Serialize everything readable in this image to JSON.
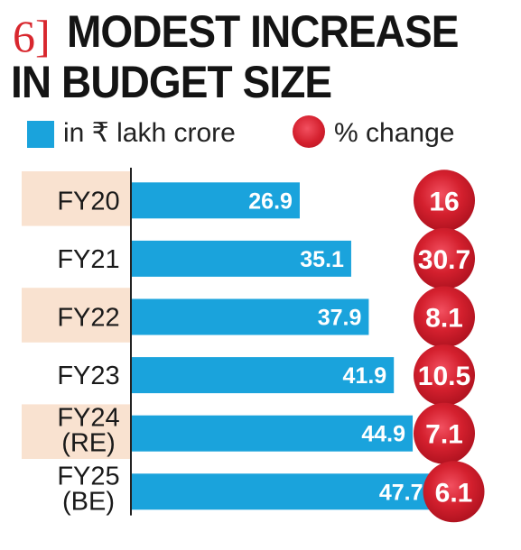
{
  "title": {
    "number": "6",
    "bracket": "]",
    "line1": "MODEST INCREASE",
    "line2": "IN BUDGET SIZE"
  },
  "legend": {
    "bar_label": "in ₹ lakh crore",
    "circle_label": "% change"
  },
  "colors": {
    "bar": "#1aa3dc",
    "circle": "#d4202e",
    "band": "#f9e2d0",
    "title_accent": "#d8272e"
  },
  "chart_data": {
    "type": "bar",
    "orientation": "horizontal",
    "title": "MODEST INCREASE IN BUDGET SIZE",
    "categories": [
      [
        "FY20"
      ],
      [
        "FY21"
      ],
      [
        "FY22"
      ],
      [
        "FY23"
      ],
      [
        "FY24",
        "(RE)"
      ],
      [
        "FY25",
        "(BE)"
      ]
    ],
    "series": [
      {
        "name": "in ₹ lakh crore",
        "values": [
          26.9,
          35.1,
          37.9,
          41.9,
          44.9,
          47.7
        ]
      },
      {
        "name": "% change",
        "values": [
          16,
          30.7,
          8.1,
          10.5,
          7.1,
          6.1
        ]
      }
    ],
    "value_labels": [
      "26.9",
      "35.1",
      "37.9",
      "41.9",
      "44.9",
      "47.7"
    ],
    "change_labels": [
      "16",
      "30.7",
      "8.1",
      "10.5",
      "7.1",
      "6.1"
    ],
    "banded_rows": [
      0,
      2,
      4
    ],
    "grid": false
  }
}
